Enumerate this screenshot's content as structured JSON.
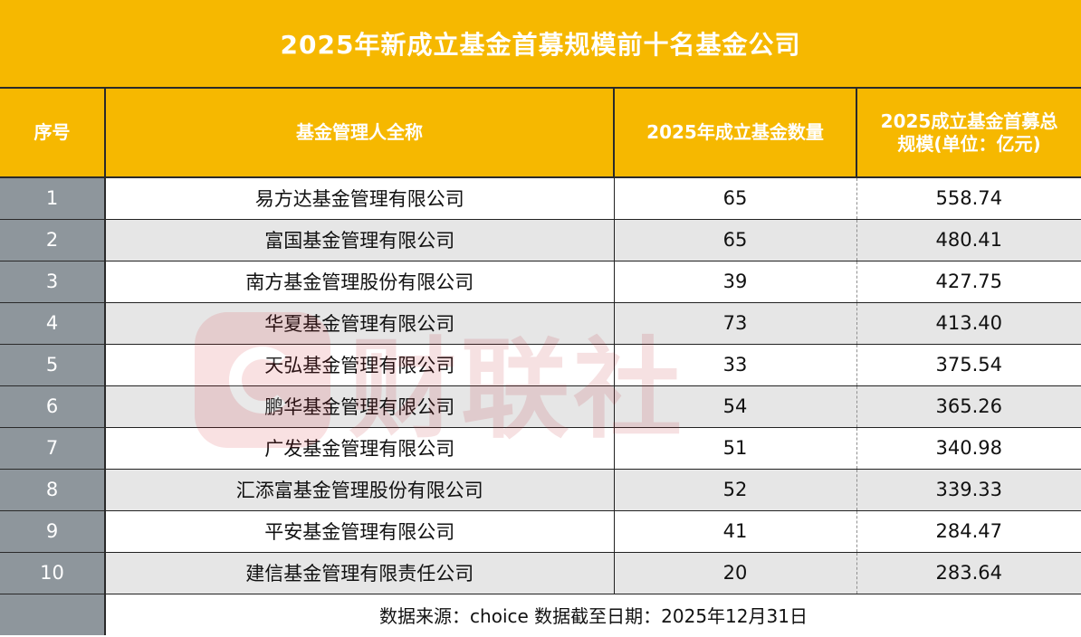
{
  "title": "2025年新成立基金首募规模前十名基金公司",
  "headers": {
    "index": "序号",
    "company": "基金管理人全称",
    "count": "2025年成立基金数量",
    "scale_line1": "2025成立基金首募总",
    "scale_line2": "规模(单位：亿元)"
  },
  "rows": [
    {
      "index": "1",
      "company": "易方达基金管理有限公司",
      "count": "65",
      "scale": "558.74"
    },
    {
      "index": "2",
      "company": "富国基金管理有限公司",
      "count": "65",
      "scale": "480.41"
    },
    {
      "index": "3",
      "company": "南方基金管理股份有限公司",
      "count": "39",
      "scale": "427.75"
    },
    {
      "index": "4",
      "company": "华夏基金管理有限公司",
      "count": "73",
      "scale": "413.40"
    },
    {
      "index": "5",
      "company": "天弘基金管理有限公司",
      "count": "33",
      "scale": "375.54"
    },
    {
      "index": "6",
      "company": "鹏华基金管理有限公司",
      "count": "54",
      "scale": "365.26"
    },
    {
      "index": "7",
      "company": "广发基金管理有限公司",
      "count": "51",
      "scale": "340.98"
    },
    {
      "index": "8",
      "company": "汇添富基金管理股份有限公司",
      "count": "52",
      "scale": "339.33"
    },
    {
      "index": "9",
      "company": "平安基金管理有限公司",
      "count": "41",
      "scale": "284.47"
    },
    {
      "index": "10",
      "company": "建信基金管理有限责任公司",
      "count": "20",
      "scale": "283.64"
    }
  ],
  "footer": "数据来源：choice 数据截至日期：2025年12月31日",
  "watermark": "财联社",
  "colors": {
    "header_bg": "#f6b800",
    "index_col_bg": "#8e969c",
    "stripe_bg": "#e6e6e6",
    "watermark": "#d81e2a"
  }
}
